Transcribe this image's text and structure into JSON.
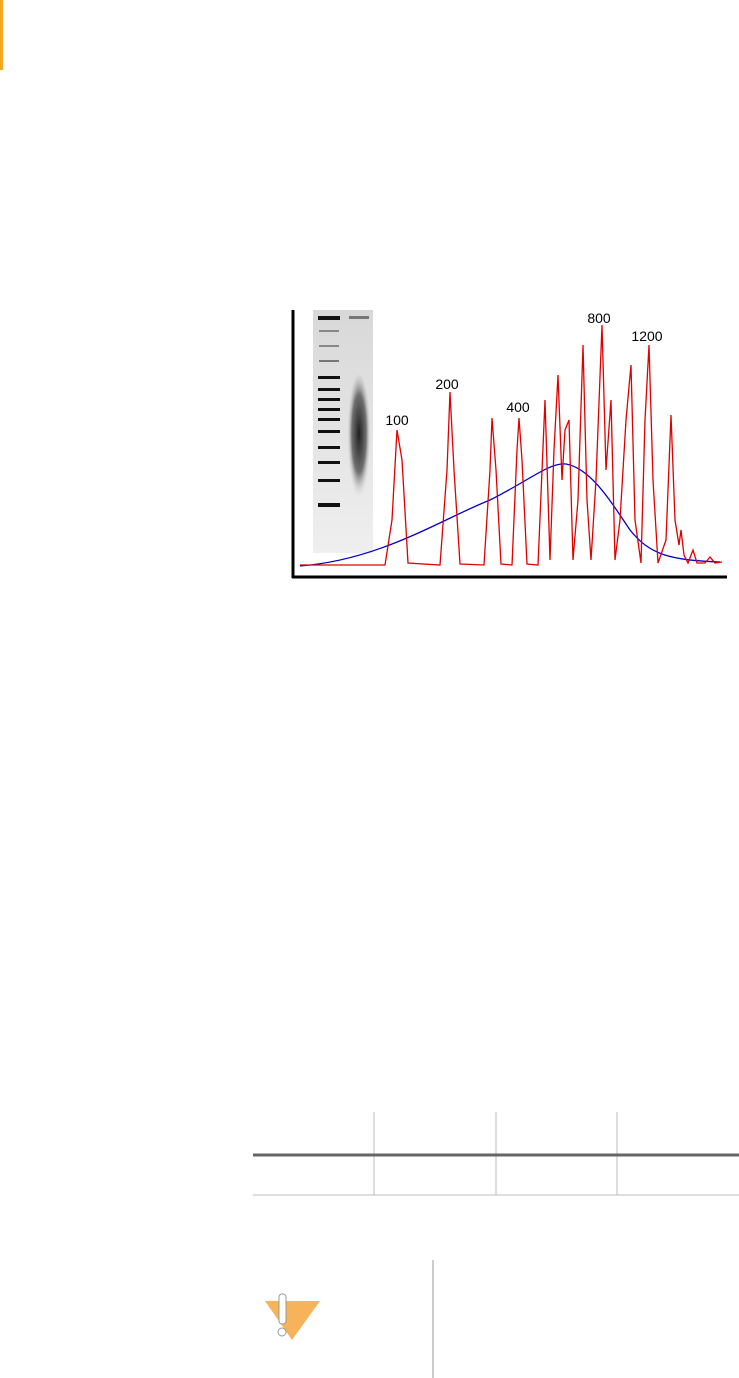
{
  "figure": {
    "peak_labels": [
      "100",
      "200",
      "400",
      "800",
      "1200"
    ]
  }
}
